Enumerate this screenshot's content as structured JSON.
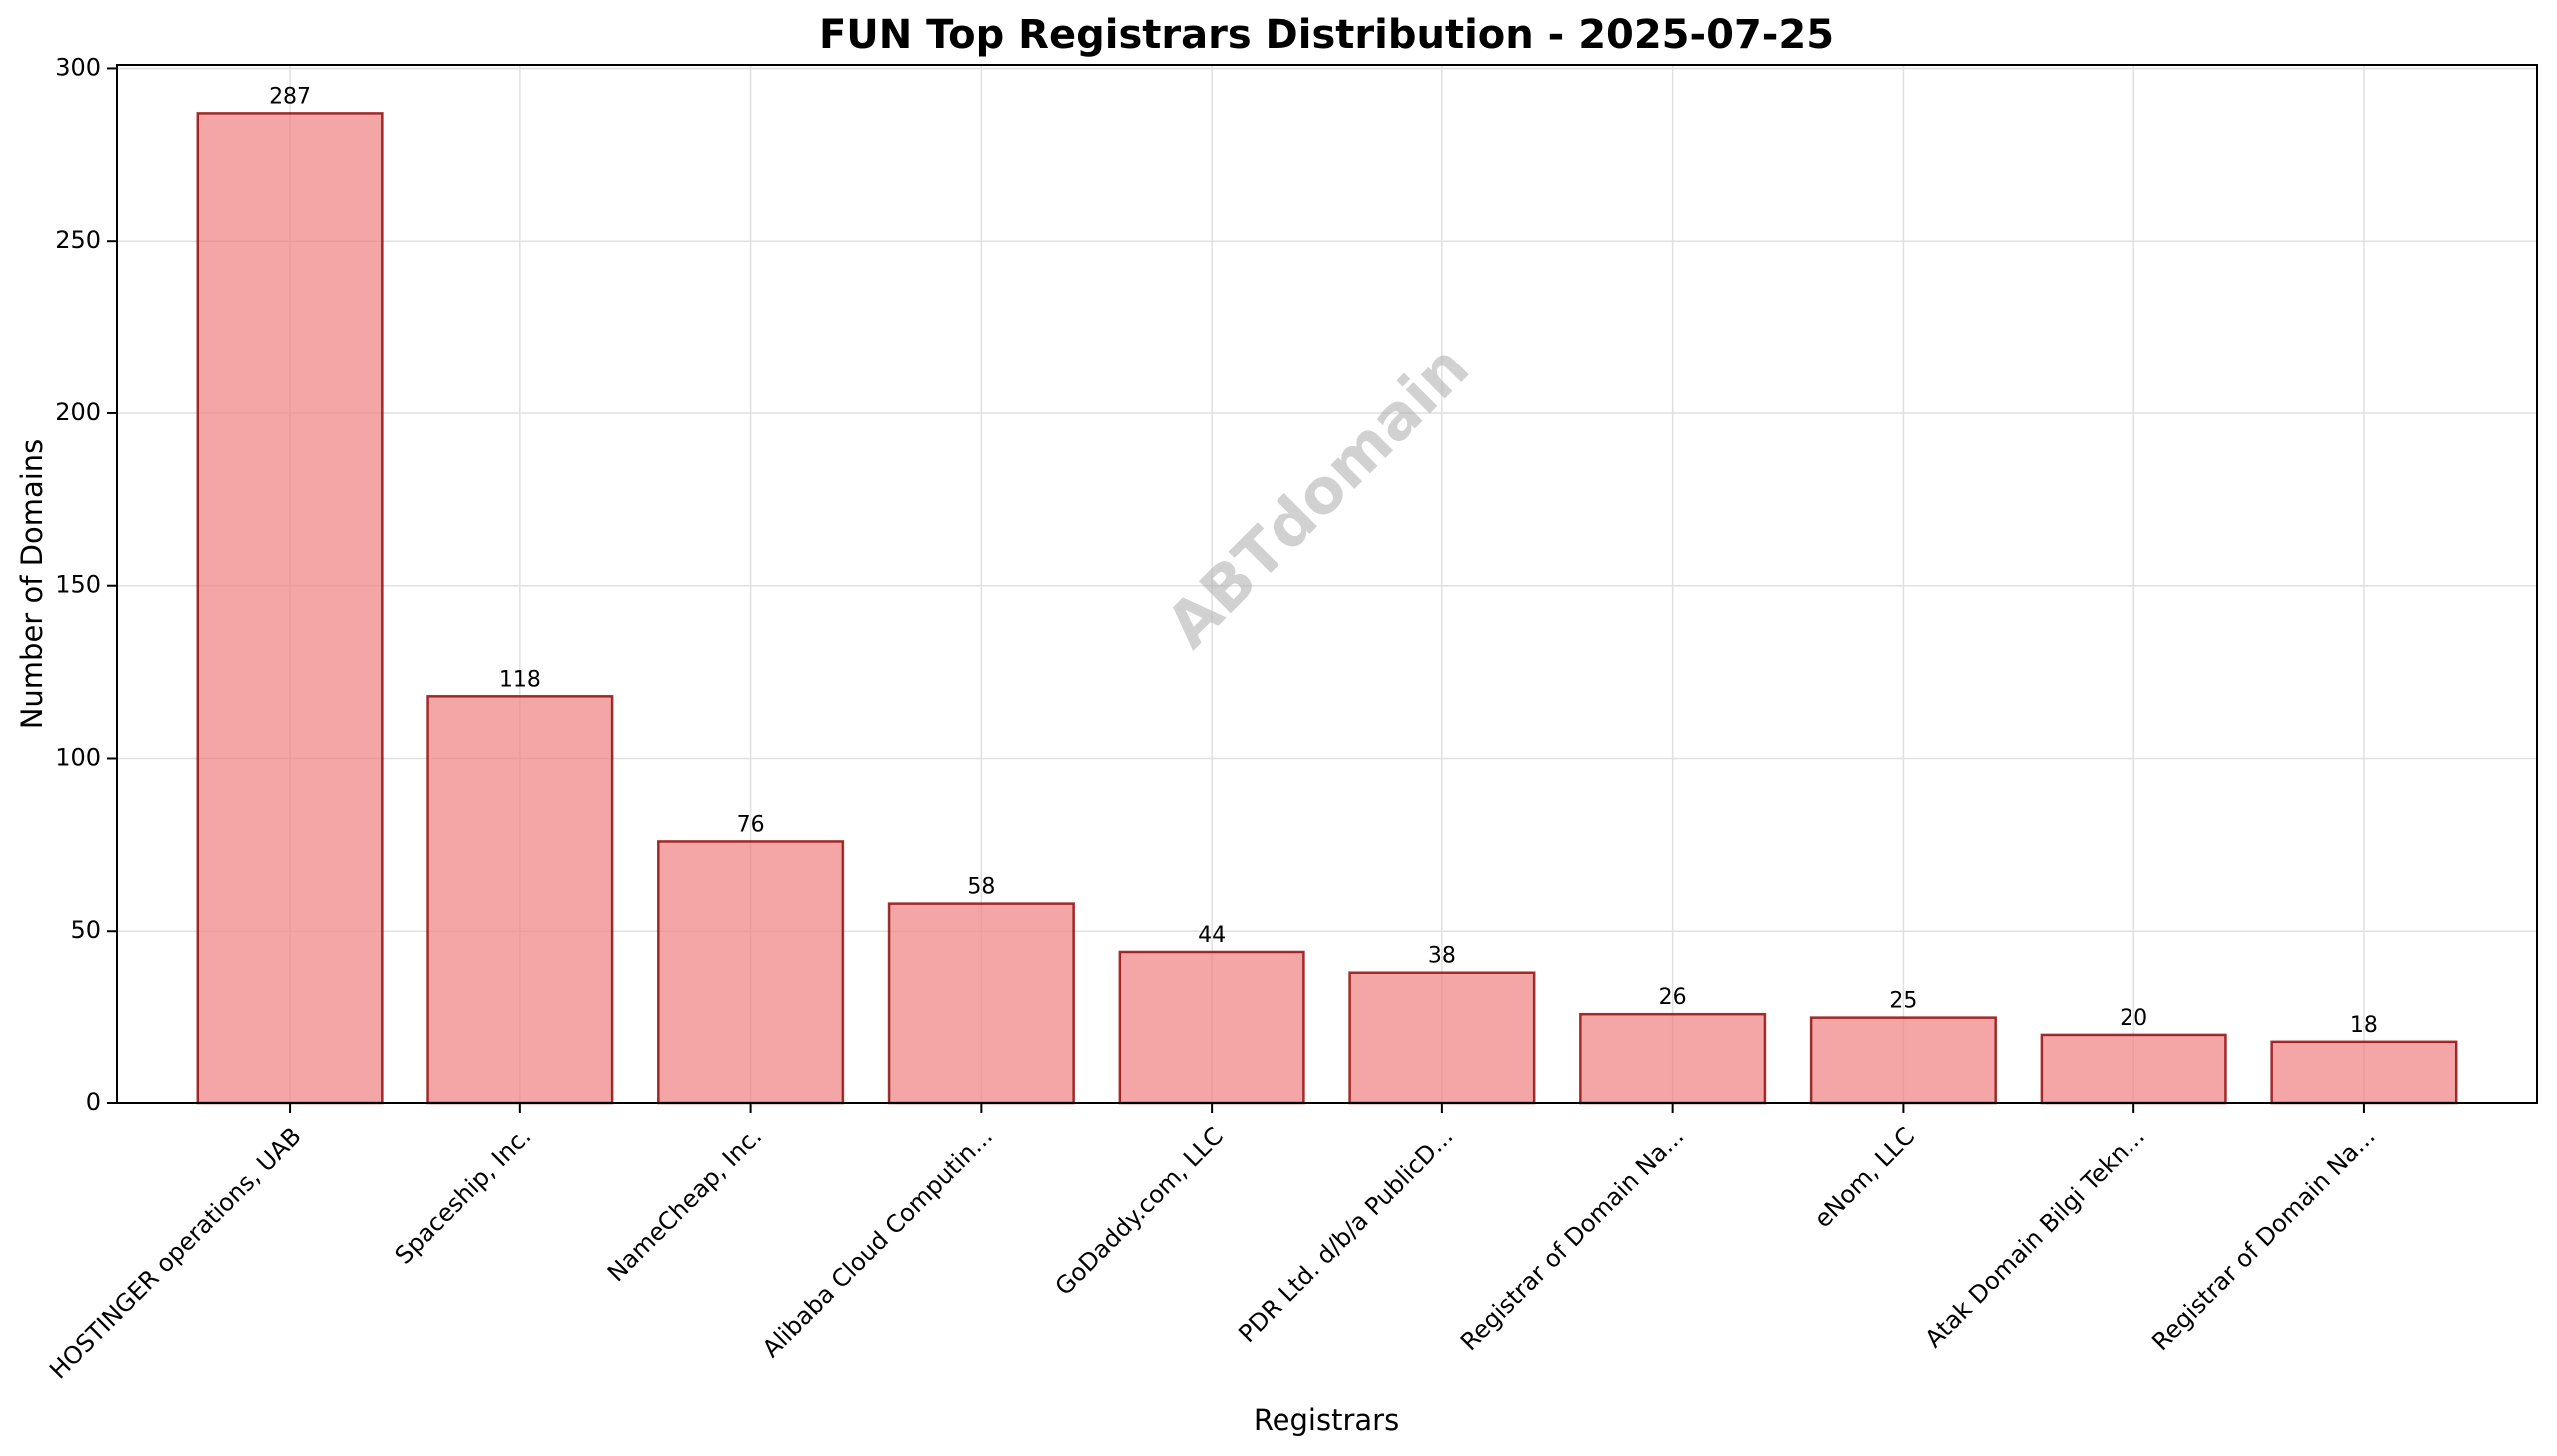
{
  "chart_data": {
    "type": "bar",
    "title": "FUN Top Registrars Distribution - 2025-07-25",
    "xlabel": "Registrars",
    "ylabel": "Number of Domains",
    "categories": [
      "HOSTINGER operations, UAB",
      "Spaceship, Inc.",
      "NameCheap, Inc.",
      "Alibaba Cloud Computin...",
      "GoDaddy.com, LLC",
      "PDR Ltd. d/b/a PublicD...",
      "Registrar of Domain Na...",
      "eNom, LLC",
      "Atak Domain Bilgi Tekn...",
      "Registrar of Domain Na..."
    ],
    "values": [
      287,
      118,
      76,
      58,
      44,
      38,
      26,
      25,
      20,
      18
    ],
    "ylim": [
      0,
      301
    ],
    "yticks": [
      0,
      50,
      100,
      150,
      200,
      250,
      300
    ],
    "grid": true,
    "bar_color": "#f08080",
    "bar_edge_color": "#8b0000",
    "watermark": "ABTdomain"
  }
}
